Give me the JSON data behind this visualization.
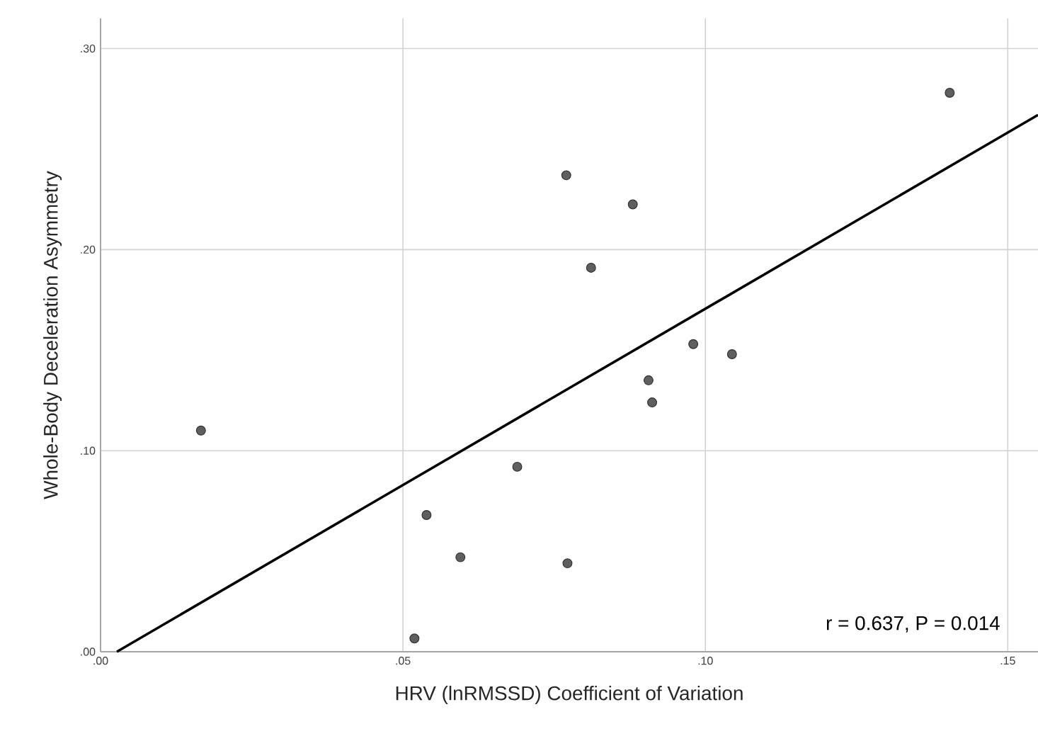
{
  "chart_data": {
    "type": "scatter",
    "xlabel": "HRV (lnRMSSD) Coefficient of Variation",
    "ylabel": "Whole-Body Deceleration Asymmetry",
    "annotations": [
      "r = 0.637, P = 0.014"
    ],
    "xlim": [
      0,
      0.155
    ],
    "ylim": [
      0,
      0.315
    ],
    "xticks": [
      {
        "value": 0,
        "label": ".00"
      },
      {
        "value": 0.05,
        "label": ".05"
      },
      {
        "value": 0.1,
        "label": ".10"
      },
      {
        "value": 0.15,
        "label": ".15"
      }
    ],
    "yticks": [
      {
        "value": 0,
        "label": ".00"
      },
      {
        "value": 0.1,
        "label": ".10"
      },
      {
        "value": 0.2,
        "label": ".20"
      },
      {
        "value": 0.3,
        "label": ".30"
      }
    ],
    "grid": true,
    "series": [
      {
        "color": "#5f5f5f",
        "marker": "circle",
        "x": [
          0.0166,
          0.0539,
          0.0595,
          0.0519,
          0.0689,
          0.077,
          0.088,
          0.0811,
          0.098,
          0.1044,
          0.0906,
          0.0912,
          0.0772,
          0.1404
        ],
        "values": [
          0.11,
          0.068,
          0.047,
          0.0066,
          0.092,
          0.237,
          0.2225,
          0.191,
          0.153,
          0.148,
          0.135,
          0.124,
          0.044,
          0.278
        ]
      },
      {
        "type": "line",
        "color": "#000000",
        "marker": "none",
        "line_style": "solid",
        "x": [
          0.0027,
          0.155
        ],
        "values": [
          0,
          0.267
        ]
      }
    ]
  }
}
